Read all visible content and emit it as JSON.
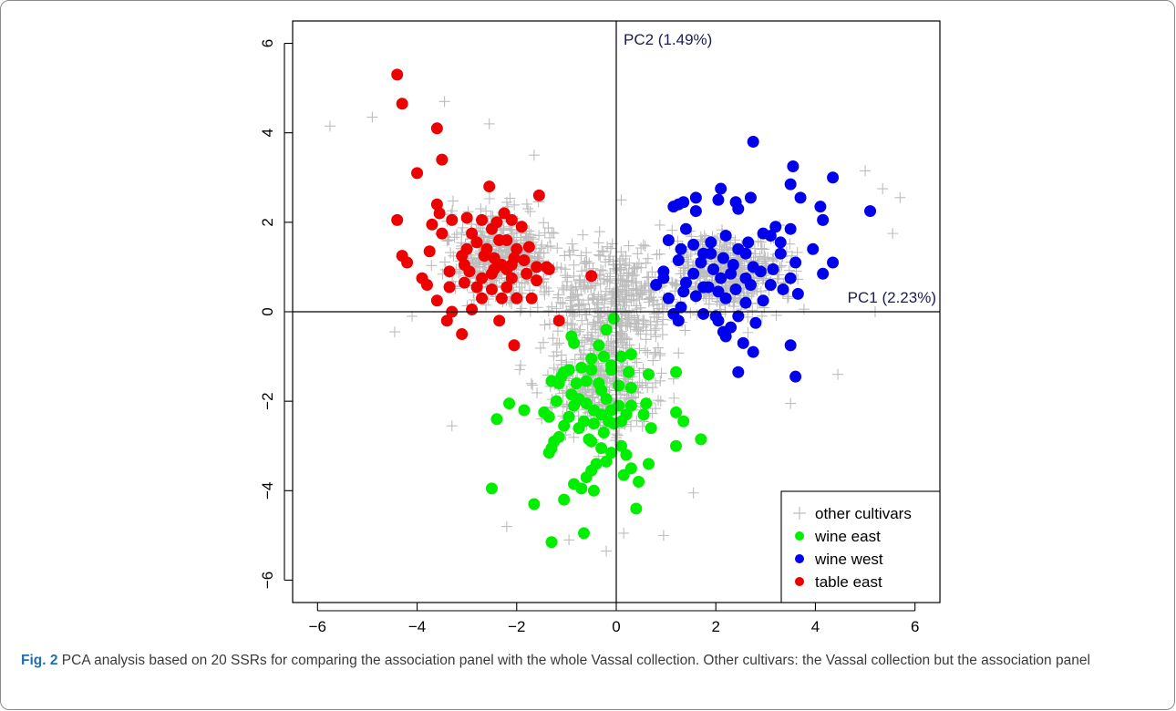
{
  "caption": {
    "label": "Fig. 2",
    "text": "PCA analysis based on 20 SSRs for comparing the association panel with the whole Vassal collection. Other cultivars: the Vassal collection but the association panel"
  },
  "chart_data": {
    "type": "scatter",
    "title": "",
    "xlim": [
      -6.5,
      6.5
    ],
    "ylim": [
      -6.5,
      6.5
    ],
    "x_ticks": [
      -6,
      -4,
      -2,
      0,
      2,
      4,
      6
    ],
    "y_ticks": [
      -6,
      -4,
      -2,
      0,
      2,
      4,
      6
    ],
    "x_tick_labels": [
      "−6",
      "−4",
      "−2",
      "0",
      "2",
      "4",
      "6"
    ],
    "y_tick_labels": [
      "−6",
      "−4",
      "−2",
      "0",
      "2",
      "4",
      "6"
    ],
    "pc1_label": "PC1 (2.23%)",
    "pc2_label": "PC2 (1.49%)",
    "grid": false,
    "legend_position": "bottom-right",
    "legend": [
      {
        "label": "other cultivars",
        "marker": "plus",
        "color": "#bdbdbd"
      },
      {
        "label": "wine east",
        "marker": "dot",
        "color": "#00ee00"
      },
      {
        "label": "wine west",
        "marker": "dot",
        "color": "#0000ee"
      },
      {
        "label": "table east",
        "marker": "dot",
        "color": "#ee0000"
      }
    ],
    "series": [
      {
        "name": "table east",
        "color": "#ee0000",
        "marker": "dot",
        "points": [
          [
            -4.4,
            5.3
          ],
          [
            -4.3,
            4.65
          ],
          [
            -3.6,
            4.1
          ],
          [
            -3.5,
            3.4
          ],
          [
            -4.0,
            3.1
          ],
          [
            -3.55,
            2.2
          ],
          [
            -3.6,
            2.4
          ],
          [
            -3.3,
            2.05
          ],
          [
            -3.7,
            1.95
          ],
          [
            -4.4,
            2.05
          ],
          [
            -2.55,
            2.8
          ],
          [
            -1.55,
            2.6
          ],
          [
            -3.5,
            1.75
          ],
          [
            -4.3,
            1.25
          ],
          [
            -4.2,
            1.1
          ],
          [
            -3.75,
            1.35
          ],
          [
            -3.9,
            0.75
          ],
          [
            -3.8,
            0.6
          ],
          [
            -3.35,
            0.55
          ],
          [
            -3.6,
            0.25
          ],
          [
            -3.35,
            0.9
          ],
          [
            -3.05,
            1.05
          ],
          [
            -3.0,
            1.4
          ],
          [
            -2.9,
            1.75
          ],
          [
            -3.0,
            2.1
          ],
          [
            -2.7,
            2.05
          ],
          [
            -2.5,
            1.85
          ],
          [
            -2.8,
            1.55
          ],
          [
            -2.6,
            1.4
          ],
          [
            -2.45,
            1.2
          ],
          [
            -2.3,
            1.05
          ],
          [
            -2.2,
            0.95
          ],
          [
            -2.5,
            0.85
          ],
          [
            -2.7,
            0.75
          ],
          [
            -2.95,
            0.9
          ],
          [
            -3.05,
            0.65
          ],
          [
            -2.8,
            0.55
          ],
          [
            -2.5,
            0.5
          ],
          [
            -2.3,
            0.3
          ],
          [
            -2.0,
            0.3
          ],
          [
            -1.7,
            0.3
          ],
          [
            -2.7,
            0.3
          ],
          [
            -2.9,
            0.05
          ],
          [
            -3.3,
            0.0
          ],
          [
            -3.4,
            -0.2
          ],
          [
            -3.1,
            -0.5
          ],
          [
            -2.35,
            -0.2
          ],
          [
            -2.25,
            2.2
          ],
          [
            -2.1,
            2.05
          ],
          [
            -1.9,
            1.9
          ],
          [
            -2.2,
            1.6
          ],
          [
            -2.0,
            1.4
          ],
          [
            -1.75,
            1.45
          ],
          [
            -2.05,
            1.2
          ],
          [
            -1.85,
            1.15
          ],
          [
            -1.6,
            1.0
          ],
          [
            -1.4,
            1.0
          ],
          [
            -1.8,
            0.85
          ],
          [
            -2.1,
            0.75
          ],
          [
            -1.6,
            0.7
          ],
          [
            -1.35,
            0.95
          ],
          [
            -2.35,
            1.6
          ],
          [
            -2.65,
            1.25
          ],
          [
            -2.2,
            0.55
          ],
          [
            -2.05,
            -0.75
          ],
          [
            -1.15,
            -0.2
          ],
          [
            -0.5,
            0.8
          ],
          [
            -2.4,
            2.0
          ],
          [
            -2.1,
            1.05
          ],
          [
            -3.1,
            1.25
          ],
          [
            -2.45,
            0.95
          ]
        ]
      },
      {
        "name": "wine west",
        "color": "#0000ee",
        "marker": "dot",
        "points": [
          [
            2.75,
            3.8
          ],
          [
            3.55,
            3.25
          ],
          [
            4.35,
            3.0
          ],
          [
            3.5,
            2.85
          ],
          [
            3.7,
            2.55
          ],
          [
            5.1,
            2.25
          ],
          [
            4.1,
            2.35
          ],
          [
            4.15,
            2.05
          ],
          [
            3.95,
            1.4
          ],
          [
            4.35,
            1.1
          ],
          [
            4.15,
            0.85
          ],
          [
            3.6,
            1.1
          ],
          [
            3.5,
            0.75
          ],
          [
            3.65,
            0.4
          ],
          [
            3.35,
            0.5
          ],
          [
            3.1,
            0.6
          ],
          [
            3.15,
            0.95
          ],
          [
            3.3,
            1.3
          ],
          [
            3.1,
            1.7
          ],
          [
            3.5,
            1.85
          ],
          [
            3.2,
            1.9
          ],
          [
            2.7,
            2.55
          ],
          [
            2.45,
            2.3
          ],
          [
            2.4,
            2.45
          ],
          [
            2.1,
            2.75
          ],
          [
            2.05,
            2.5
          ],
          [
            1.6,
            2.55
          ],
          [
            1.35,
            2.45
          ],
          [
            1.25,
            2.4
          ],
          [
            1.15,
            2.35
          ],
          [
            1.6,
            2.25
          ],
          [
            1.4,
            1.85
          ],
          [
            1.3,
            1.4
          ],
          [
            1.25,
            1.15
          ],
          [
            1.05,
            1.6
          ],
          [
            0.95,
            0.9
          ],
          [
            0.95,
            0.75
          ],
          [
            0.8,
            0.6
          ],
          [
            1.05,
            0.3
          ],
          [
            1.35,
            0.45
          ],
          [
            1.6,
            0.35
          ],
          [
            1.4,
            0.65
          ],
          [
            1.55,
            0.85
          ],
          [
            1.75,
            1.3
          ],
          [
            1.7,
            1.1
          ],
          [
            1.9,
            1.3
          ],
          [
            1.95,
            0.95
          ],
          [
            2.1,
            0.75
          ],
          [
            2.15,
            1.2
          ],
          [
            2.35,
            1.05
          ],
          [
            2.45,
            1.4
          ],
          [
            2.6,
            1.3
          ],
          [
            2.75,
            1.0
          ],
          [
            2.6,
            0.75
          ],
          [
            2.4,
            0.5
          ],
          [
            2.2,
            0.3
          ],
          [
            2.05,
            0.45
          ],
          [
            1.85,
            0.55
          ],
          [
            2.7,
            0.6
          ],
          [
            2.9,
            0.9
          ],
          [
            2.95,
            0.25
          ],
          [
            2.6,
            0.2
          ],
          [
            2.45,
            -0.1
          ],
          [
            2.3,
            -0.35
          ],
          [
            2.15,
            -0.45
          ],
          [
            2.0,
            -0.1
          ],
          [
            1.75,
            -0.05
          ],
          [
            1.3,
            0.1
          ],
          [
            1.75,
            0.55
          ],
          [
            2.3,
            0.85
          ],
          [
            1.9,
            1.55
          ],
          [
            1.55,
            1.5
          ],
          [
            2.05,
            -0.2
          ],
          [
            2.2,
            -0.55
          ],
          [
            1.15,
            -0.05
          ],
          [
            1.25,
            -0.2
          ],
          [
            2.8,
            -0.25
          ],
          [
            2.55,
            -0.7
          ],
          [
            2.75,
            -0.9
          ],
          [
            2.45,
            -1.35
          ],
          [
            3.5,
            -0.75
          ],
          [
            3.6,
            -1.45
          ],
          [
            2.2,
            1.7
          ],
          [
            2.65,
            1.55
          ],
          [
            2.95,
            1.75
          ],
          [
            3.3,
            1.55
          ]
        ]
      },
      {
        "name": "wine east",
        "color": "#00ee00",
        "marker": "dot",
        "points": [
          [
            -0.05,
            -0.15
          ],
          [
            -0.2,
            -0.4
          ],
          [
            -0.35,
            -0.75
          ],
          [
            -0.9,
            -0.55
          ],
          [
            -0.85,
            -0.7
          ],
          [
            -0.5,
            -1.05
          ],
          [
            -0.25,
            -1.0
          ],
          [
            -0.1,
            -1.2
          ],
          [
            0.1,
            -1.0
          ],
          [
            0.3,
            -0.95
          ],
          [
            0.25,
            -1.35
          ],
          [
            -0.1,
            -1.3
          ],
          [
            -0.5,
            -1.3
          ],
          [
            -0.7,
            -1.25
          ],
          [
            -0.95,
            -1.3
          ],
          [
            -1.05,
            -1.35
          ],
          [
            -1.15,
            -1.6
          ],
          [
            -1.3,
            -1.55
          ],
          [
            -0.8,
            -1.6
          ],
          [
            -0.6,
            -1.55
          ],
          [
            -0.35,
            -1.6
          ],
          [
            -0.3,
            -1.75
          ],
          [
            -0.2,
            -1.95
          ],
          [
            -0.75,
            -1.95
          ],
          [
            -0.9,
            -1.85
          ],
          [
            -0.85,
            -2.1
          ],
          [
            -0.6,
            -2.05
          ],
          [
            -0.45,
            -2.2
          ],
          [
            -0.3,
            -2.3
          ],
          [
            -0.1,
            -2.2
          ],
          [
            0.05,
            -2.1
          ],
          [
            0.2,
            -2.3
          ],
          [
            0.1,
            -2.45
          ],
          [
            -0.05,
            -2.5
          ],
          [
            -0.25,
            -2.7
          ],
          [
            -0.45,
            -2.5
          ],
          [
            -0.65,
            -2.45
          ],
          [
            -0.75,
            -2.6
          ],
          [
            -0.95,
            -2.35
          ],
          [
            -1.05,
            -2.55
          ],
          [
            -1.15,
            -2.8
          ],
          [
            -1.25,
            -2.9
          ],
          [
            -1.35,
            -2.35
          ],
          [
            -1.45,
            -2.25
          ],
          [
            -1.35,
            -3.15
          ],
          [
            -1.3,
            -3.05
          ],
          [
            -1.85,
            -2.2
          ],
          [
            -2.15,
            -2.05
          ],
          [
            -2.4,
            -2.4
          ],
          [
            -2.5,
            -3.95
          ],
          [
            -1.65,
            -4.3
          ],
          [
            -1.3,
            -5.15
          ],
          [
            -0.65,
            -4.95
          ],
          [
            -1.05,
            -4.2
          ],
          [
            -0.85,
            -3.85
          ],
          [
            -0.7,
            -3.95
          ],
          [
            -0.6,
            -3.7
          ],
          [
            -0.45,
            -4.0
          ],
          [
            -0.5,
            -3.55
          ],
          [
            -0.4,
            -3.4
          ],
          [
            -0.2,
            -3.35
          ],
          [
            -0.3,
            -3.05
          ],
          [
            -0.5,
            -2.9
          ],
          [
            -0.1,
            -3.15
          ],
          [
            0.1,
            -3.0
          ],
          [
            0.2,
            -3.2
          ],
          [
            0.3,
            -3.5
          ],
          [
            0.45,
            -3.8
          ],
          [
            0.4,
            -4.4
          ],
          [
            0.15,
            -3.65
          ],
          [
            0.65,
            -3.4
          ],
          [
            0.7,
            -2.6
          ],
          [
            0.55,
            -2.3
          ],
          [
            0.6,
            -2.05
          ],
          [
            0.3,
            -2.1
          ],
          [
            0.3,
            -1.7
          ],
          [
            0.65,
            -1.4
          ],
          [
            1.2,
            -1.35
          ],
          [
            1.2,
            -2.25
          ],
          [
            1.2,
            -3.0
          ],
          [
            1.35,
            -2.45
          ],
          [
            1.7,
            -2.85
          ],
          [
            -1.1,
            -1.45
          ],
          [
            -1.2,
            -2.0
          ],
          [
            -0.55,
            -2.85
          ],
          [
            0.05,
            -1.65
          ],
          [
            -0.15,
            -2.45
          ]
        ]
      }
    ],
    "background_series": {
      "name": "other cultivars",
      "color": "#bdbdbd",
      "marker": "plus",
      "approx_count": 1700,
      "seed": 20,
      "extremes": [
        [
          -5.75,
          4.15
        ],
        [
          -4.9,
          4.35
        ],
        [
          -3.45,
          4.7
        ],
        [
          -2.55,
          4.2
        ],
        [
          -1.65,
          3.5
        ],
        [
          0.1,
          2.5
        ],
        [
          5.35,
          2.75
        ],
        [
          5.7,
          2.55
        ],
        [
          5.0,
          3.15
        ],
        [
          5.55,
          1.75
        ],
        [
          -4.45,
          -0.45
        ],
        [
          -4.1,
          -0.1
        ],
        [
          -3.3,
          -2.55
        ],
        [
          -2.2,
          -4.8
        ],
        [
          -0.2,
          -5.35
        ],
        [
          0.15,
          -4.95
        ],
        [
          1.55,
          -4.05
        ],
        [
          3.5,
          -2.05
        ],
        [
          4.45,
          -1.4
        ],
        [
          5.2,
          0.0
        ],
        [
          0.95,
          -5.0
        ],
        [
          -0.95,
          -5.1
        ]
      ]
    }
  }
}
